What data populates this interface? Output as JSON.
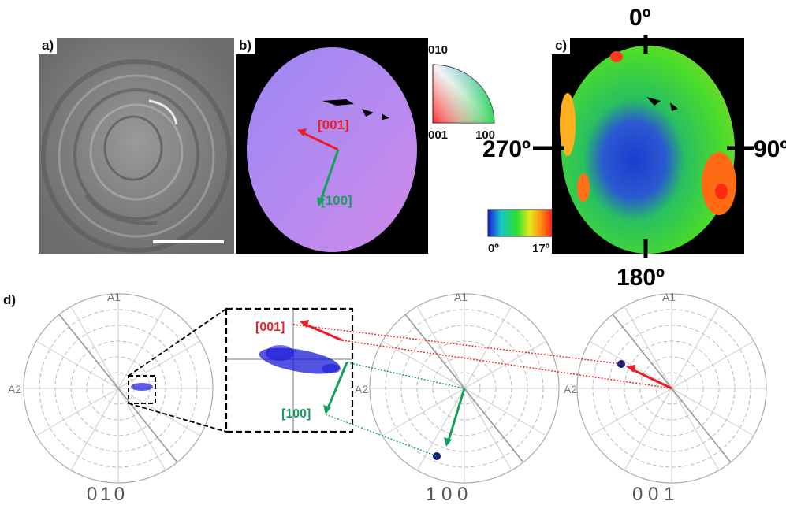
{
  "panels": {
    "a": {
      "label": "a)"
    },
    "b": {
      "label": "b)",
      "direction_labels": [
        "[001]",
        "[100]"
      ]
    },
    "c": {
      "label": "c)",
      "angles": [
        "0º",
        "90º",
        "180º",
        "270º"
      ]
    },
    "d": {
      "label": "d)"
    }
  },
  "ipf_key": {
    "top": "010",
    "bottom_left": "001",
    "bottom_right": "100"
  },
  "color_scale": {
    "min_label": "0º",
    "max_label": "17º",
    "colors": [
      "#1c1ce0",
      "#14c8c8",
      "#2ee02e",
      "#e8e81a",
      "#ff8c10",
      "#ff1a1a"
    ]
  },
  "pole_figures": [
    {
      "name": "010",
      "axis_top": "A1",
      "axis_left": "A2"
    },
    {
      "name": "1 0 0",
      "axis_top": "A1",
      "axis_left": "A2"
    },
    {
      "name": "0 0 1",
      "axis_top": "A1",
      "axis_left": "A2"
    }
  ],
  "zoom_inset": {
    "labels": [
      "[001]",
      "[100]"
    ]
  },
  "colors": {
    "red_arrow": "#ee1c24",
    "green_arrow": "#13a05a",
    "pole_blue": "#1a1ad8"
  }
}
